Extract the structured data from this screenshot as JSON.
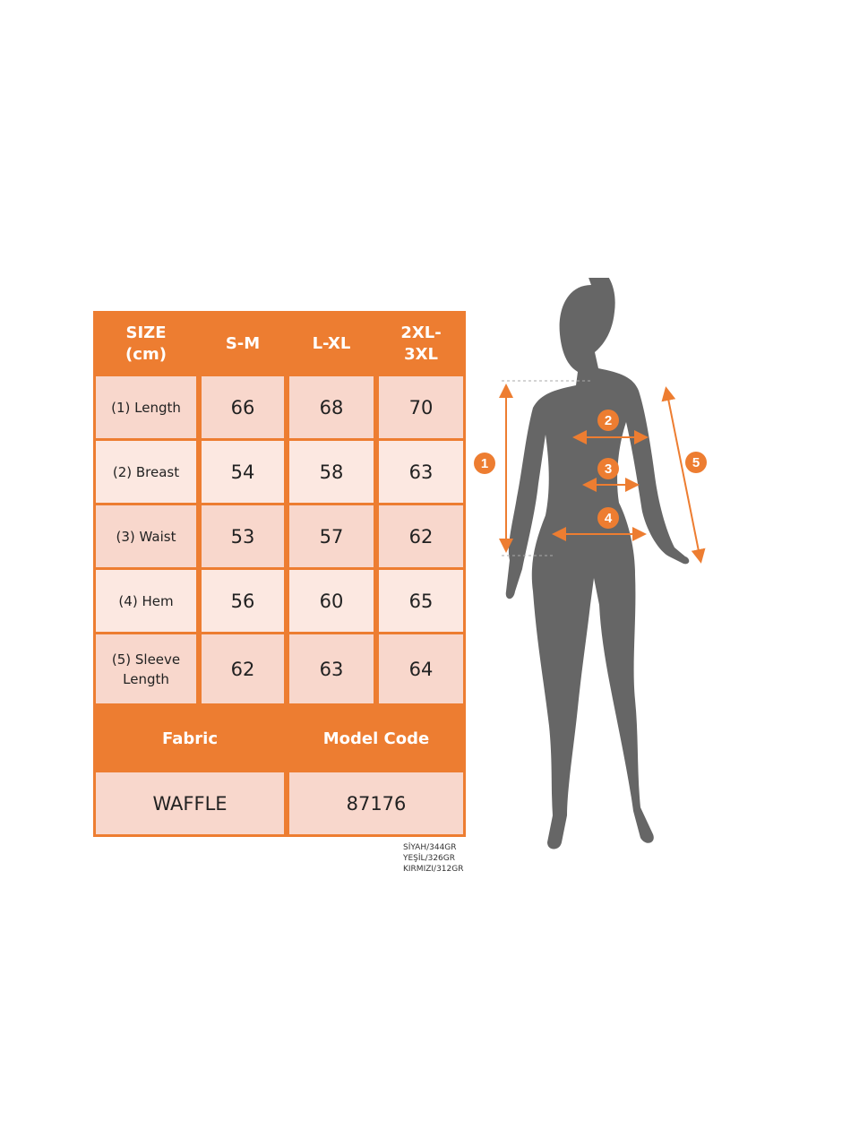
{
  "table": {
    "headers": [
      "SIZE (cm)",
      "S-M",
      "L-XL",
      "2XL-3XL"
    ],
    "header_lines": [
      [
        "SIZE",
        "(cm)"
      ],
      [
        "S-M"
      ],
      [
        "L-XL"
      ],
      [
        "2XL-",
        "3XL"
      ]
    ],
    "rows": [
      {
        "label": "(1) Length",
        "values": [
          "66",
          "68",
          "70"
        ]
      },
      {
        "label": "(2) Breast",
        "values": [
          "54",
          "58",
          "63"
        ]
      },
      {
        "label": "(3) Waist",
        "values": [
          "53",
          "57",
          "62"
        ]
      },
      {
        "label": "(4) Hem",
        "values": [
          "56",
          "60",
          "65"
        ]
      },
      {
        "label_lines": [
          "(5) Sleeve",
          "Length"
        ],
        "values": [
          "62",
          "63",
          "64"
        ]
      }
    ],
    "fabric_label": "Fabric",
    "model_code_label": "Model Code",
    "fabric": "WAFFLE",
    "model_code": "87176"
  },
  "weights": [
    "SİYAH/344GR",
    "YEŞİL/326GR",
    "KIRMIZI/312GR"
  ],
  "figure": {
    "markers": [
      "1",
      "2",
      "3",
      "4",
      "5"
    ]
  },
  "colors": {
    "accent": "#ed7d31",
    "row_dark": "#f8d7cc",
    "row_light": "#fce8e1",
    "silhouette": "#666666"
  }
}
